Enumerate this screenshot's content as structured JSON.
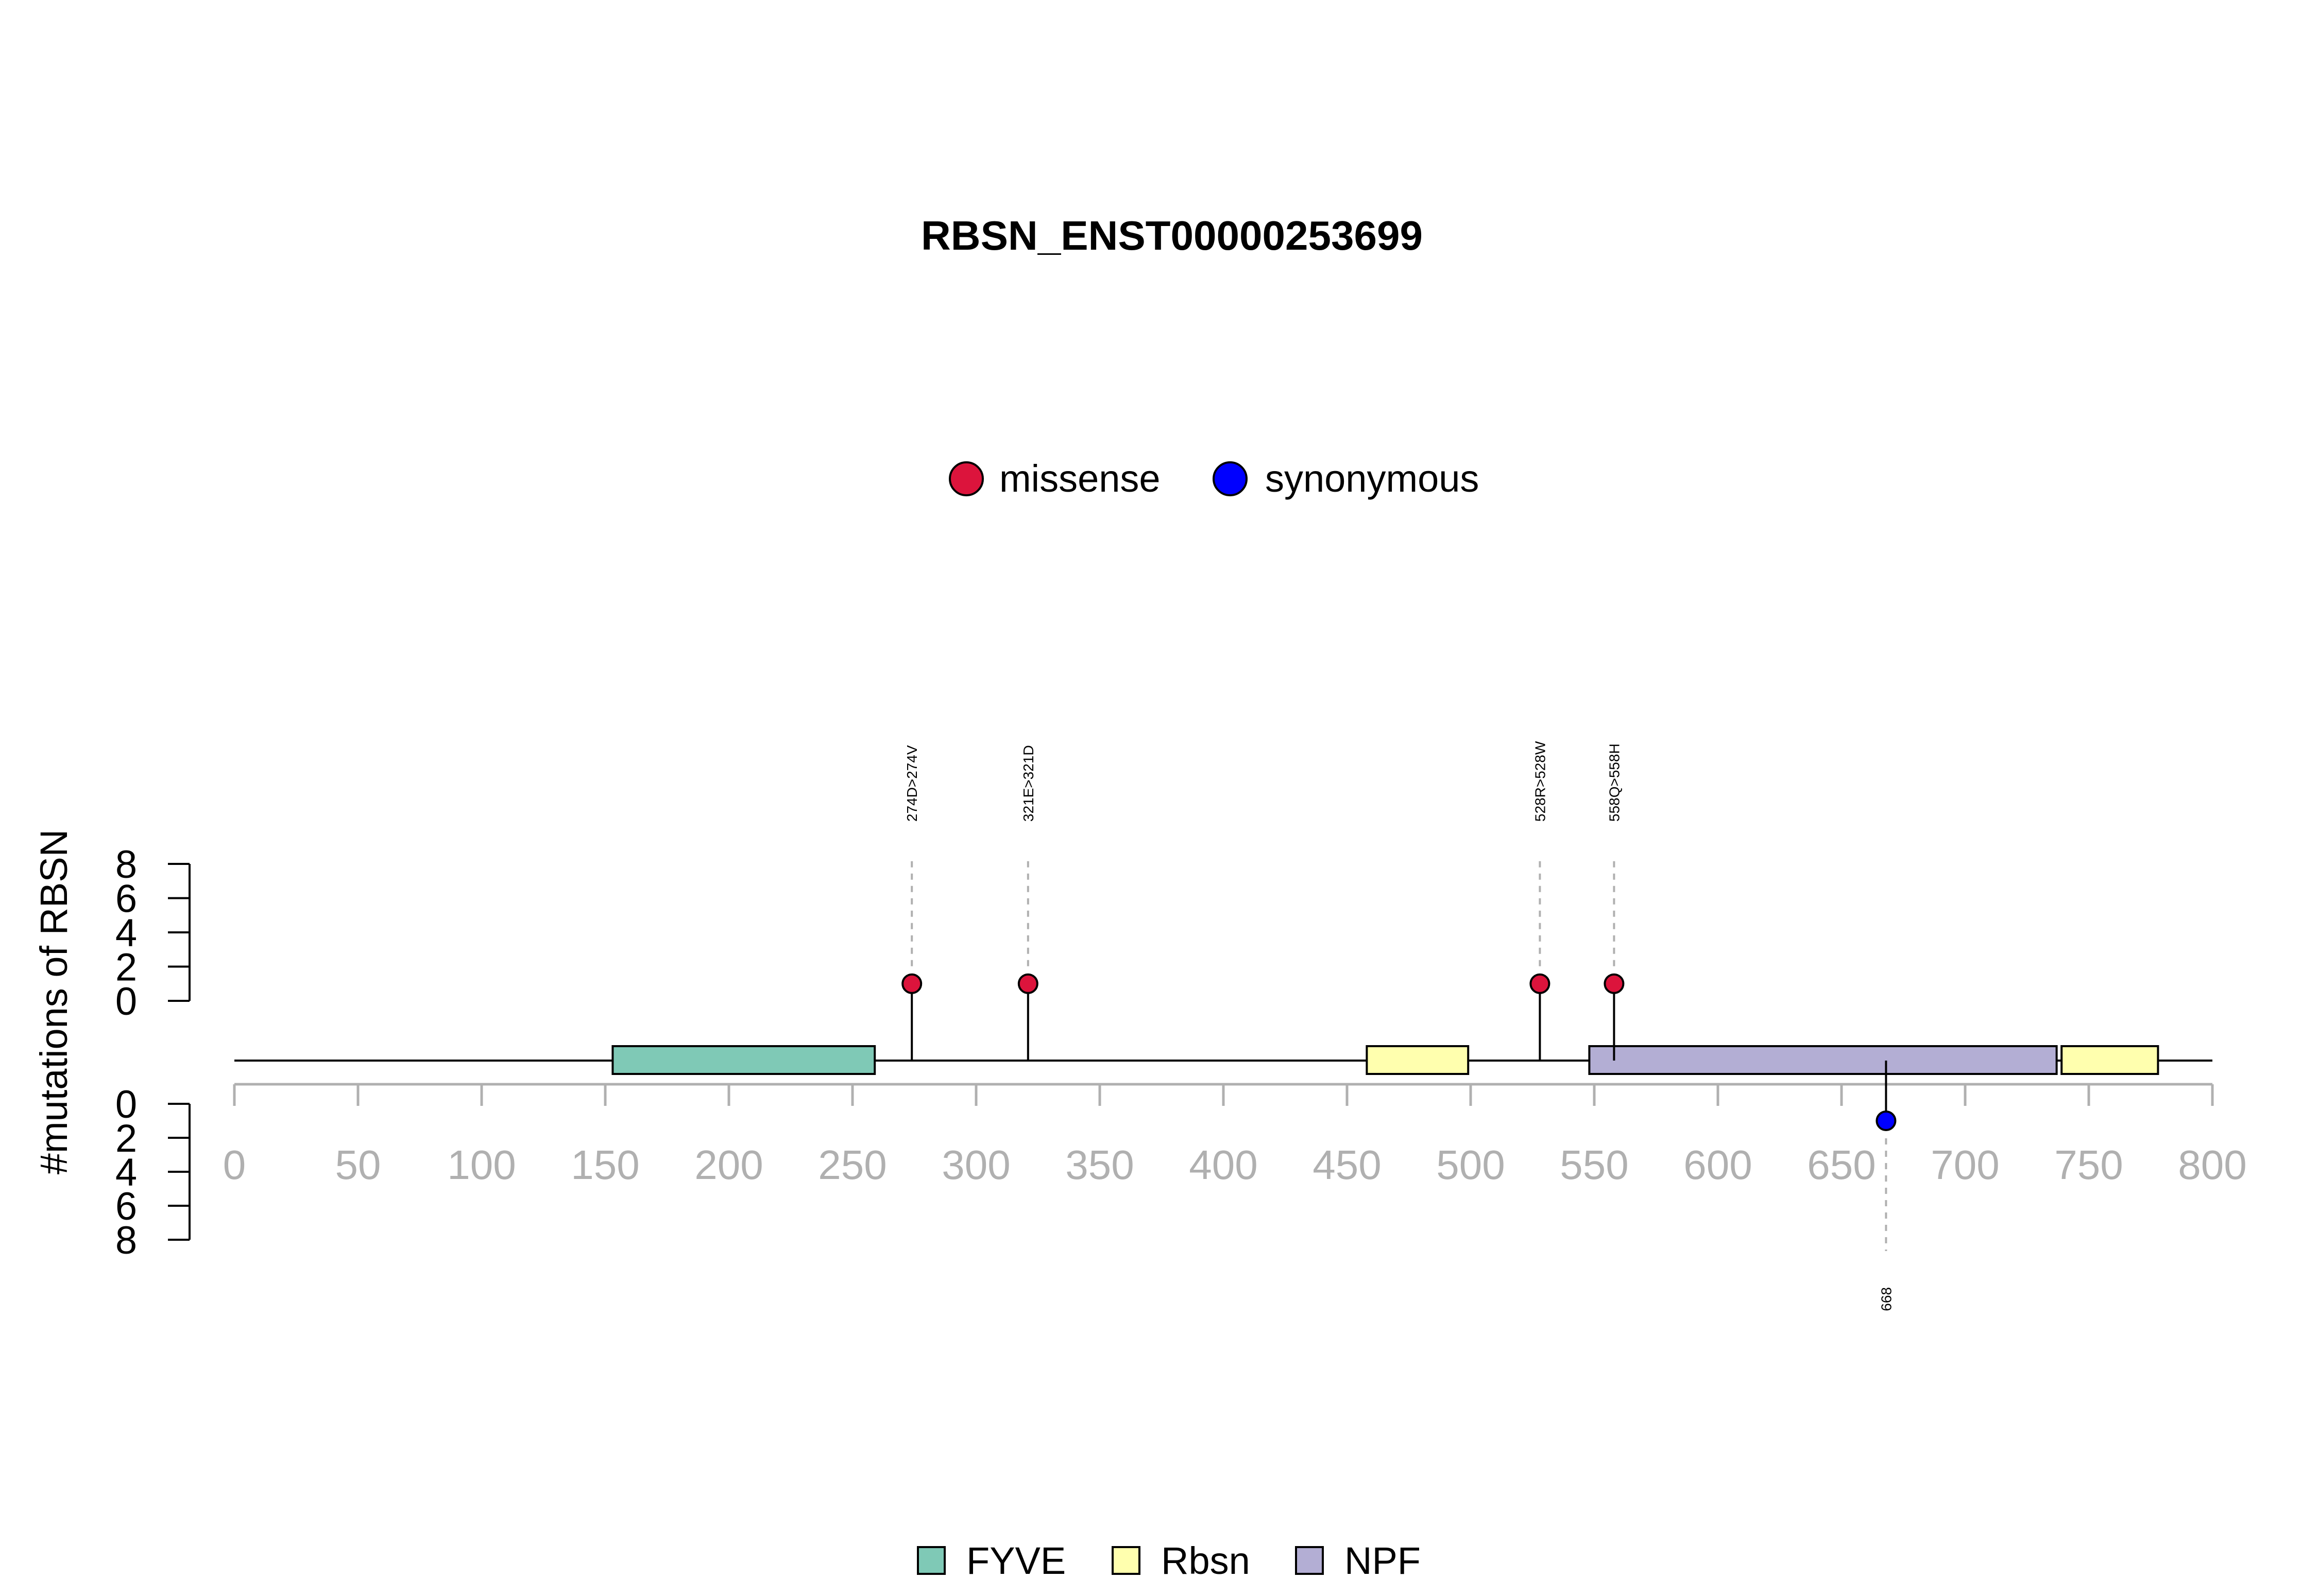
{
  "chart_data": {
    "type": "lollipop",
    "title": "RBSN_ENST00000253699",
    "ylabel": "#mutations of RBSN",
    "xlim": [
      0,
      800
    ],
    "x_ticks": [
      0,
      50,
      100,
      150,
      200,
      250,
      300,
      350,
      400,
      450,
      500,
      550,
      600,
      650,
      700,
      750,
      800
    ],
    "y_ticks": [
      0,
      2,
      4,
      6,
      8
    ],
    "mutation_legend": [
      {
        "name": "missense",
        "color": "#dc143c"
      },
      {
        "name": "synonymous",
        "color": "#0000ff"
      }
    ],
    "domain_legend": [
      {
        "name": "FYVE",
        "color": "#7fc9b6"
      },
      {
        "name": "Rbsn",
        "color": "#ffffae"
      },
      {
        "name": "NPF",
        "color": "#b3aed4"
      }
    ],
    "protein_length": 800,
    "domains": [
      {
        "name": "FYVE",
        "start": 153,
        "end": 259
      },
      {
        "name": "Rbsn",
        "start": 458,
        "end": 499
      },
      {
        "name": "NPF",
        "start": 548,
        "end": 737
      },
      {
        "name": "Rbsn",
        "start": 739,
        "end": 778
      }
    ],
    "mutations": [
      {
        "position": 274,
        "count": 1,
        "type": "missense",
        "label": "274D>274V",
        "side": "top"
      },
      {
        "position": 321,
        "count": 1,
        "type": "missense",
        "label": "321E>321D",
        "side": "top"
      },
      {
        "position": 528,
        "count": 1,
        "type": "missense",
        "label": "528R>528W",
        "side": "top"
      },
      {
        "position": 558,
        "count": 1,
        "type": "missense",
        "label": "558Q>558H",
        "side": "top"
      },
      {
        "position": 668,
        "count": 1,
        "type": "synonymous",
        "label": "668",
        "side": "bottom"
      }
    ]
  }
}
